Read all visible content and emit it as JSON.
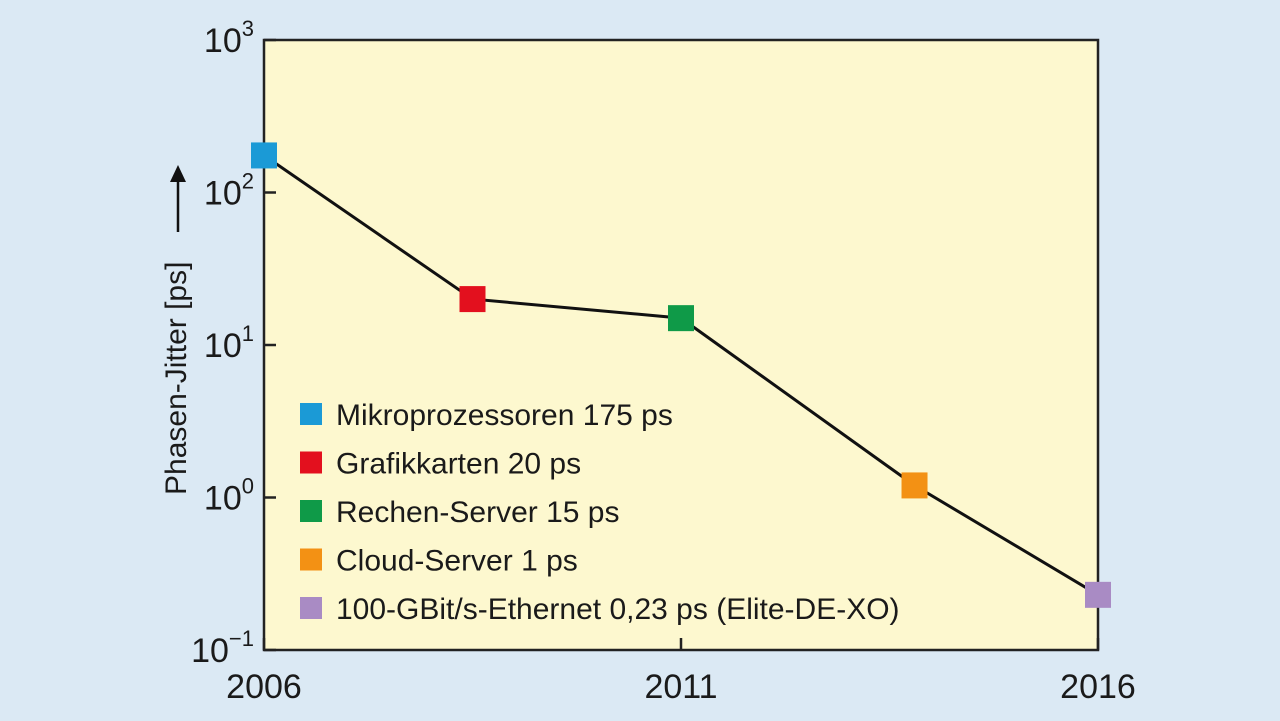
{
  "chart_data": {
    "type": "line",
    "ylabel": "Phasen-Jitter [ps]",
    "yscale": "log",
    "ylim": [
      0.1,
      1000
    ],
    "xlim": [
      2006,
      2016
    ],
    "x_ticks": [
      {
        "value": 2006,
        "label": "2006"
      },
      {
        "value": 2011,
        "label": "2011"
      },
      {
        "value": 2016,
        "label": "2016"
      }
    ],
    "y_ticks": [
      {
        "value": 1000,
        "base": "10",
        "exp": "3"
      },
      {
        "value": 100,
        "base": "10",
        "exp": "2"
      },
      {
        "value": 10,
        "base": "10",
        "exp": "1"
      },
      {
        "value": 1,
        "base": "10",
        "exp": "0"
      },
      {
        "value": 0.1,
        "base": "10",
        "exp": "−1"
      }
    ],
    "line_color": "#111111",
    "plot_background": "#fdf8cf",
    "points": [
      {
        "x": 2006,
        "y": 175,
        "color": "#1b9ad6",
        "legend": "Mikroprozessoren 175 ps"
      },
      {
        "x": 2008.5,
        "y": 20,
        "color": "#e3101e",
        "legend": "Grafikkarten 20 ps"
      },
      {
        "x": 2011,
        "y": 15,
        "color": "#0f9a48",
        "legend": "Rechen-Server 15 ps"
      },
      {
        "x": 2013.8,
        "y": 1.2,
        "color": "#f39114",
        "legend": "Cloud-Server 1 ps"
      },
      {
        "x": 2016,
        "y": 0.23,
        "color": "#a98bc4",
        "legend": "100-GBit/s-Ethernet 0,23 ps (Elite-DE-XO)"
      }
    ],
    "legend_position": "bottom-left",
    "grid": false
  }
}
